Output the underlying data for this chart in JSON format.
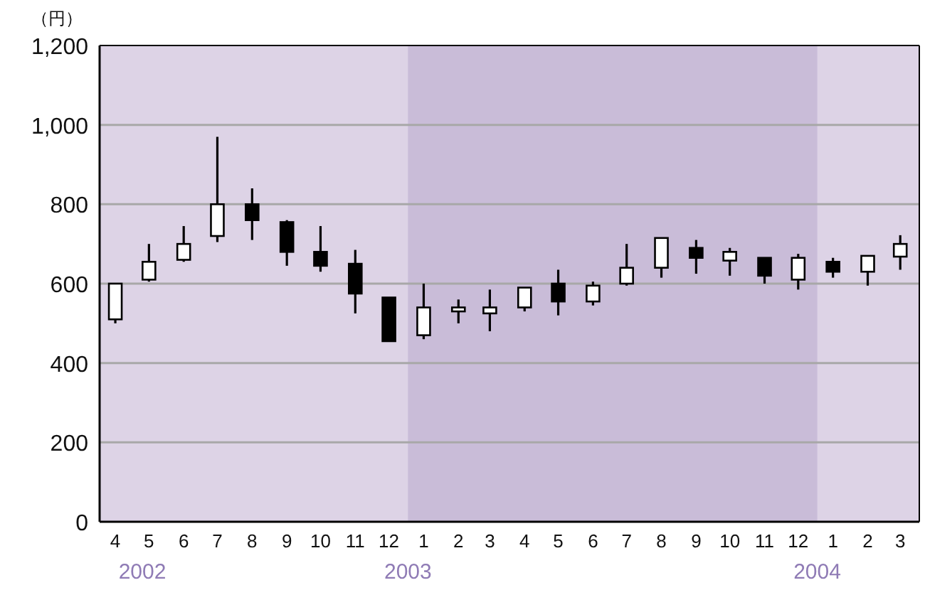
{
  "chart_data": {
    "type": "candlestick",
    "ylabel": "（円）",
    "x": [
      "2002-04-15",
      "2002-05-15",
      "2002-06-15",
      "2002-07-15",
      "2002-08-15",
      "2002-09-15",
      "2002-10-15",
      "2002-11-15",
      "2002-12-15",
      "2003-01-15",
      "2003-02-15",
      "2003-03-15",
      "2003-04-15",
      "2003-05-15",
      "2003-06-15",
      "2003-07-15",
      "2003-08-15",
      "2003-09-15",
      "2003-10-15",
      "2003-11-15",
      "2003-12-15",
      "2004-01-15",
      "2004-02-15",
      "2004-03-15"
    ],
    "ohlc": [
      [
        510,
        600,
        500,
        600
      ],
      [
        610,
        700,
        605,
        655
      ],
      [
        660,
        745,
        655,
        700
      ],
      [
        720,
        970,
        705,
        800
      ],
      [
        800,
        840,
        710,
        760
      ],
      [
        755,
        760,
        645,
        680
      ],
      [
        680,
        745,
        630,
        645
      ],
      [
        650,
        685,
        525,
        575
      ],
      [
        565,
        565,
        455,
        455
      ],
      [
        470,
        600,
        460,
        540
      ],
      [
        530,
        560,
        500,
        540
      ],
      [
        525,
        585,
        480,
        540
      ],
      [
        540,
        590,
        530,
        590
      ],
      [
        600,
        635,
        520,
        555
      ],
      [
        555,
        605,
        545,
        595
      ],
      [
        600,
        700,
        595,
        640
      ],
      [
        640,
        715,
        615,
        715
      ],
      [
        690,
        710,
        625,
        665
      ],
      [
        658,
        690,
        620,
        680
      ],
      [
        665,
        665,
        600,
        620
      ],
      [
        610,
        675,
        585,
        665
      ],
      [
        655,
        665,
        615,
        630
      ],
      [
        630,
        670,
        595,
        670
      ],
      [
        668,
        722,
        635,
        700
      ]
    ],
    "xlim": [
      "2002-04",
      "2004-04"
    ],
    "xticks": [
      {
        "value": "2002-04-15",
        "label": "4"
      },
      {
        "value": "2002-05-15",
        "label": "5"
      },
      {
        "value": "2002-06-15",
        "label": "6"
      },
      {
        "value": "2002-07-15",
        "label": "7"
      },
      {
        "value": "2002-08-15",
        "label": "8"
      },
      {
        "value": "2002-09-15",
        "label": "9"
      },
      {
        "value": "2002-10-15",
        "label": "10"
      },
      {
        "value": "2002-11-15",
        "label": "11"
      },
      {
        "value": "2002-12-15",
        "label": "12"
      },
      {
        "value": "2003-01-15",
        "label": "1"
      },
      {
        "value": "2003-02-15",
        "label": "2"
      },
      {
        "value": "2003-03-15",
        "label": "3"
      },
      {
        "value": "2003-04-15",
        "label": "4"
      },
      {
        "value": "2003-05-15",
        "label": "5"
      },
      {
        "value": "2003-06-15",
        "label": "6"
      },
      {
        "value": "2003-07-15",
        "label": "7"
      },
      {
        "value": "2003-08-15",
        "label": "8"
      },
      {
        "value": "2003-09-15",
        "label": "9"
      },
      {
        "value": "2003-10-15",
        "label": "10"
      },
      {
        "value": "2003-11-15",
        "label": "11"
      },
      {
        "value": "2003-12-15",
        "label": "12"
      },
      {
        "value": "2004-01-15",
        "label": "1"
      },
      {
        "value": "2004-02-15",
        "label": "2"
      },
      {
        "value": "2004-03-15",
        "label": "3"
      }
    ],
    "ylim": [
      0,
      1200
    ],
    "yticks": [
      0,
      200,
      400,
      600,
      800,
      {
        "value": 1000,
        "label": "1,000"
      },
      {
        "value": 1200,
        "label": "1,200"
      }
    ],
    "grid": "y",
    "bands": [
      {
        "axis": "x",
        "from": "2003-01",
        "to": "2004-01",
        "color": "#c9bcd8"
      }
    ],
    "annotations": [
      "2002",
      "2003",
      "2004"
    ]
  }
}
